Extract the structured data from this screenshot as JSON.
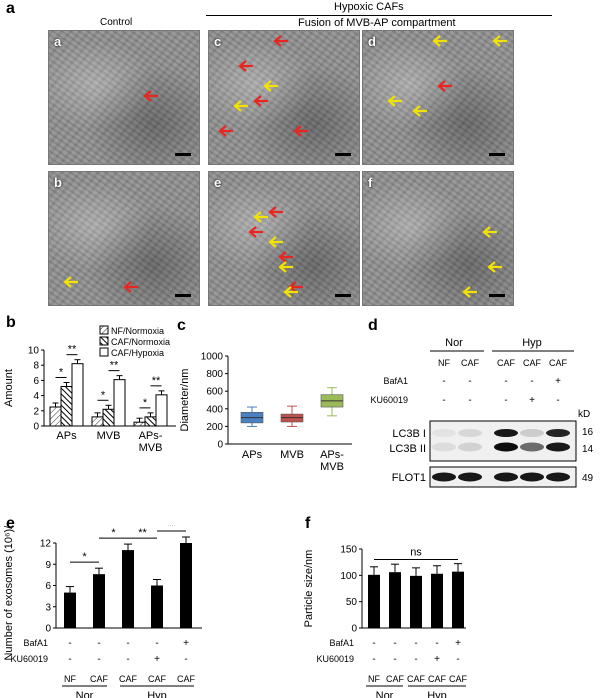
{
  "panel_labels": {
    "a": "a",
    "b": "b",
    "c": "c",
    "d": "d",
    "e": "e",
    "f": "f"
  },
  "header": {
    "control": "Control",
    "hypoxic": "Hypoxic CAFs",
    "fusion": "Fusion of MVB-AP compartment"
  },
  "micrographs": [
    {
      "label": "a",
      "arrows": [
        {
          "color": "red",
          "count": 1
        }
      ]
    },
    {
      "label": "c",
      "arrows": [
        {
          "color": "red",
          "count": 5
        },
        {
          "color": "yellow",
          "count": 2
        }
      ]
    },
    {
      "label": "d",
      "arrows": [
        {
          "color": "red",
          "count": 1
        },
        {
          "color": "yellow",
          "count": 4
        }
      ]
    },
    {
      "label": "b",
      "arrows": [
        {
          "color": "red",
          "count": 1
        },
        {
          "color": "yellow",
          "count": 1
        }
      ]
    },
    {
      "label": "e",
      "arrows": [
        {
          "color": "red",
          "count": 4
        },
        {
          "color": "yellow",
          "count": 4
        }
      ]
    },
    {
      "label": "f",
      "arrows": [
        {
          "color": "yellow",
          "count": 3
        }
      ]
    }
  ],
  "colors": {
    "red_arrow": "#e8261f",
    "yellow_arrow": "#f2e200",
    "box_blue": "#4a7fc1",
    "box_red": "#c0504d",
    "box_green": "#9bbb59"
  },
  "chart_data": [
    {
      "id": "b",
      "type": "bar",
      "ylabel": "Amount",
      "ylim": [
        0,
        10
      ],
      "yticks": [
        0,
        2,
        4,
        6,
        8,
        10
      ],
      "categories": [
        "APs",
        "MVB",
        "APs-\nMVB"
      ],
      "series": [
        {
          "name": "NF/Normoxia",
          "values": [
            2.5,
            1.2,
            0.5
          ]
        },
        {
          "name": "CAF/Normoxia",
          "values": [
            5.2,
            2.2,
            1.2
          ]
        },
        {
          "name": "CAF/Hypoxia",
          "values": [
            8.2,
            6.1,
            4.1
          ]
        }
      ],
      "significance": [
        "*",
        "**",
        "*",
        "**",
        "*",
        "**"
      ]
    },
    {
      "id": "c",
      "type": "box",
      "ylabel": "Diameter/nm",
      "ylim": [
        0,
        1000
      ],
      "yticks": [
        0,
        200,
        400,
        600,
        800,
        1000
      ],
      "categories": [
        "APs",
        "MVB",
        "APs-\nMVB"
      ],
      "boxes": [
        {
          "min": 200,
          "q1": 240,
          "median": 300,
          "q3": 360,
          "max": 420
        },
        {
          "min": 200,
          "q1": 250,
          "median": 300,
          "q3": 340,
          "max": 430
        },
        {
          "min": 320,
          "q1": 420,
          "median": 490,
          "q3": 560,
          "max": 640
        }
      ]
    },
    {
      "id": "e",
      "type": "bar",
      "ylabel": "Number of exosomes (10⁶)/mL",
      "ylim": [
        0,
        12
      ],
      "yticks": [
        0,
        3,
        6,
        9,
        12
      ],
      "categories": [
        "NF",
        "CAF",
        "CAF",
        "CAF",
        "CAF"
      ],
      "values": [
        5.0,
        7.6,
        11.0,
        6.0,
        12.0
      ],
      "significance": [
        "*",
        "*",
        "**",
        "**"
      ],
      "groups": [
        "Nor",
        "Hyp"
      ],
      "rows": [
        {
          "label": "BafA1",
          "marks": [
            "-",
            "-",
            "-",
            "-",
            "+"
          ]
        },
        {
          "label": "KU60019",
          "marks": [
            "-",
            "-",
            "-",
            "+",
            "-"
          ]
        }
      ]
    },
    {
      "id": "f",
      "type": "bar",
      "ylabel": "Particle size/nm",
      "ylim": [
        0,
        150
      ],
      "yticks": [
        0,
        50,
        100,
        150
      ],
      "categories": [
        "NF",
        "CAF",
        "CAF",
        "CAF",
        "CAF"
      ],
      "values": [
        101,
        106,
        99,
        103,
        107
      ],
      "significance": [
        "ns"
      ],
      "groups": [
        "Nor",
        "Hyp"
      ],
      "rows": [
        {
          "label": "BafA1",
          "marks": [
            "-",
            "-",
            "-",
            "-",
            "+"
          ]
        },
        {
          "label": "KU60019",
          "marks": [
            "-",
            "-",
            "-",
            "+",
            "-"
          ]
        }
      ]
    }
  ],
  "blot": {
    "groups": [
      "Nor",
      "Hyp"
    ],
    "cols": [
      "NF",
      "CAF"
    ],
    "rows": [
      {
        "label": "BafA1",
        "marks": [
          "-",
          "-",
          "-",
          "-",
          "+"
        ]
      },
      {
        "label": "KU60019",
        "marks": [
          "-",
          "-",
          "-",
          "+",
          "-"
        ]
      }
    ],
    "kd": "kD",
    "bands": [
      "LC3B I",
      "LC3B II"
    ],
    "loading": "FLOT1",
    "mw": [
      "16",
      "14",
      "49"
    ]
  }
}
